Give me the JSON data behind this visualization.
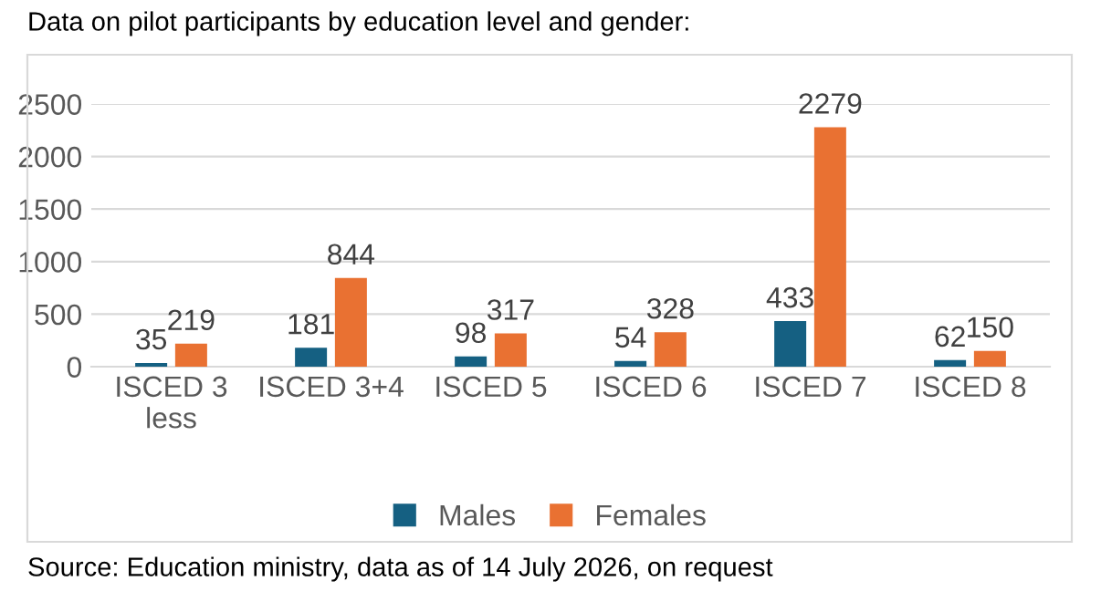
{
  "chart_data": {
    "type": "bar",
    "title": "Data on pilot participants by education level and gender:",
    "categories": [
      "ISCED 3\nless",
      "ISCED 3+4",
      "ISCED 5",
      "ISCED 6",
      "ISCED 7",
      "ISCED 8"
    ],
    "series": [
      {
        "name": "Males",
        "color": "#156082",
        "values": [
          35,
          181,
          98,
          54,
          433,
          62
        ]
      },
      {
        "name": "Females",
        "color": "#e97132",
        "values": [
          219,
          844,
          317,
          328,
          2279,
          150
        ]
      }
    ],
    "ylim": [
      0,
      2500
    ],
    "yticks": [
      0,
      500,
      1000,
      1500,
      2000,
      2500
    ],
    "grid": "y",
    "legend": "bottom",
    "data_labels": true,
    "annotations": [
      "Source: Education ministry, data as of 14 July 2026, on request"
    ]
  }
}
